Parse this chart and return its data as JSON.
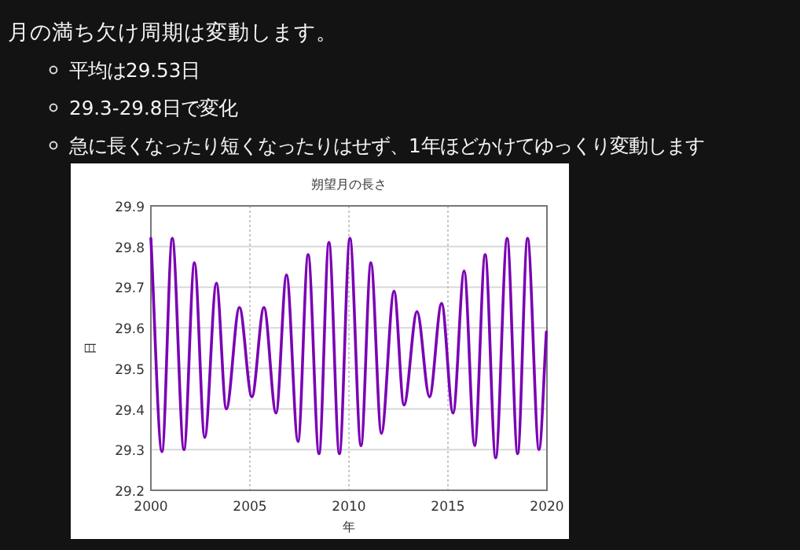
{
  "chart_data": {
    "type": "line",
    "title": "朔望月の長さ",
    "xlabel": "年",
    "ylabel": "日",
    "annotations": [
      "月の満ち欠け周期は変動します。",
      "平均は29.53日",
      "29.3-29.8日で変化",
      "急に長くなったり短くなったりはせず、1年ほどかけてゆっくり変動します"
    ],
    "x": [
      2000.0,
      2000.56,
      2001.08,
      2001.67,
      2002.2,
      2002.72,
      2003.31,
      2003.81,
      2004.47,
      2005.1,
      2005.71,
      2006.32,
      2006.85,
      2007.43,
      2007.94,
      2008.49,
      2008.99,
      2009.52,
      2010.05,
      2010.61,
      2011.11,
      2011.64,
      2012.28,
      2012.78,
      2013.44,
      2014.07,
      2014.68,
      2015.26,
      2015.82,
      2016.35,
      2016.88,
      2017.41,
      2017.99,
      2018.52,
      2019.02,
      2019.6,
      2019.97
    ],
    "series": [
      {
        "color": "#7a00b4",
        "values": [
          29.82,
          29.295,
          29.82,
          29.3,
          29.76,
          29.33,
          29.71,
          29.4,
          29.65,
          29.43,
          29.65,
          29.39,
          29.73,
          29.32,
          29.78,
          29.29,
          29.81,
          29.29,
          29.82,
          29.31,
          29.76,
          29.34,
          29.69,
          29.41,
          29.64,
          29.43,
          29.66,
          29.39,
          29.74,
          29.31,
          29.78,
          29.28,
          29.82,
          29.29,
          29.82,
          29.3,
          29.59
        ]
      }
    ],
    "xlim": [
      2000,
      2020
    ],
    "xticks": [
      2000,
      2005,
      2010,
      2015,
      2020
    ],
    "ylim": [
      29.2,
      29.9
    ],
    "yticks": [
      29.2,
      29.3,
      29.4,
      29.5,
      29.6,
      29.7,
      29.8,
      29.9
    ],
    "grid": true,
    "marker": "none",
    "line_style": "solid"
  }
}
